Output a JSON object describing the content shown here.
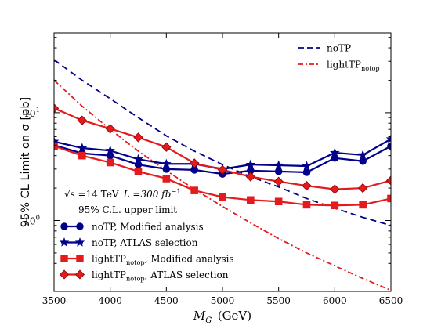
{
  "chart_data": {
    "type": "line",
    "ylabel": "95% CL Limit on σ [pb]",
    "xlabel": "M_G (GeV)",
    "xlim": [
      3500,
      6500
    ],
    "ylim": [
      0.22,
      55
    ],
    "y_scale": "log",
    "x_ticks": [
      "3500",
      "4000",
      "4500",
      "5000",
      "5500",
      "6000",
      "6500"
    ],
    "y_ticks": [
      {
        "value": 1,
        "label": "10^0"
      },
      {
        "value": 10,
        "label": "10^1"
      }
    ],
    "grid": false,
    "top_legend": {
      "placement": "top-right",
      "entries": [
        {
          "series": "noTP",
          "base": "noTP",
          "sub": ""
        },
        {
          "series": "lightTP_notop",
          "base": "lightTP",
          "sub": "notop"
        }
      ]
    },
    "annotation": {
      "line1_a": "√s =14 TeV",
      "line1_b": "L =300 fb",
      "line1_exp": "−1",
      "line2": "95% C.L. upper limit"
    },
    "bottom_legend": {
      "placement": "lower-left",
      "entries": [
        {
          "series": "noTP_modified",
          "base": "noTP",
          "sub": "",
          "rest": ", Modified analysis"
        },
        {
          "series": "noTP_atlas",
          "base": "noTP",
          "sub": "",
          "rest": ", ATLAS selection"
        },
        {
          "series": "lightTP_modified",
          "base": "lightTP",
          "sub": "notop",
          "rest": ", Modified analysis"
        },
        {
          "series": "lightTP_atlas",
          "base": "lightTP",
          "sub": "notop",
          "rest": ", ATLAS selection"
        }
      ]
    },
    "x": [
      3500,
      3750,
      4000,
      4250,
      4500,
      4750,
      5000,
      5250,
      5500,
      5750,
      6000,
      6250,
      6500
    ],
    "series": [
      {
        "id": "noTP",
        "style": "dashed",
        "color": "#00008b",
        "marker": "none",
        "values": [
          31,
          20,
          13.5,
          9.0,
          6.1,
          4.4,
          3.3,
          2.55,
          2.05,
          1.6,
          1.3,
          1.07,
          0.9
        ]
      },
      {
        "id": "lightTP_notop",
        "style": "dashdot",
        "color": "#e41a1c",
        "marker": "none",
        "values": [
          20,
          11.5,
          7.0,
          4.4,
          2.9,
          1.95,
          1.35,
          0.95,
          0.68,
          0.5,
          0.38,
          0.29,
          0.225
        ]
      },
      {
        "id": "noTP_modified",
        "style": "solid",
        "color": "#00008b",
        "marker": "circle",
        "values": [
          5.0,
          4.2,
          4.0,
          3.3,
          3.0,
          2.95,
          2.7,
          2.9,
          2.85,
          2.8,
          3.8,
          3.55,
          4.9
        ]
      },
      {
        "id": "noTP_atlas",
        "style": "solid",
        "color": "#00008b",
        "marker": "star",
        "values": [
          5.4,
          4.7,
          4.45,
          3.7,
          3.35,
          3.35,
          3.0,
          3.3,
          3.25,
          3.2,
          4.25,
          4.05,
          5.7
        ]
      },
      {
        "id": "lightTP_modified",
        "style": "solid",
        "color": "#e41a1c",
        "marker": "square",
        "values": [
          4.9,
          4.0,
          3.45,
          2.85,
          2.45,
          1.9,
          1.65,
          1.55,
          1.5,
          1.4,
          1.38,
          1.4,
          1.6
        ]
      },
      {
        "id": "lightTP_atlas",
        "style": "solid",
        "color": "#e41a1c",
        "marker": "diamond",
        "values": [
          11.0,
          8.5,
          7.1,
          5.9,
          4.8,
          3.4,
          2.95,
          2.55,
          2.3,
          2.1,
          1.95,
          2.0,
          2.35
        ]
      }
    ]
  }
}
